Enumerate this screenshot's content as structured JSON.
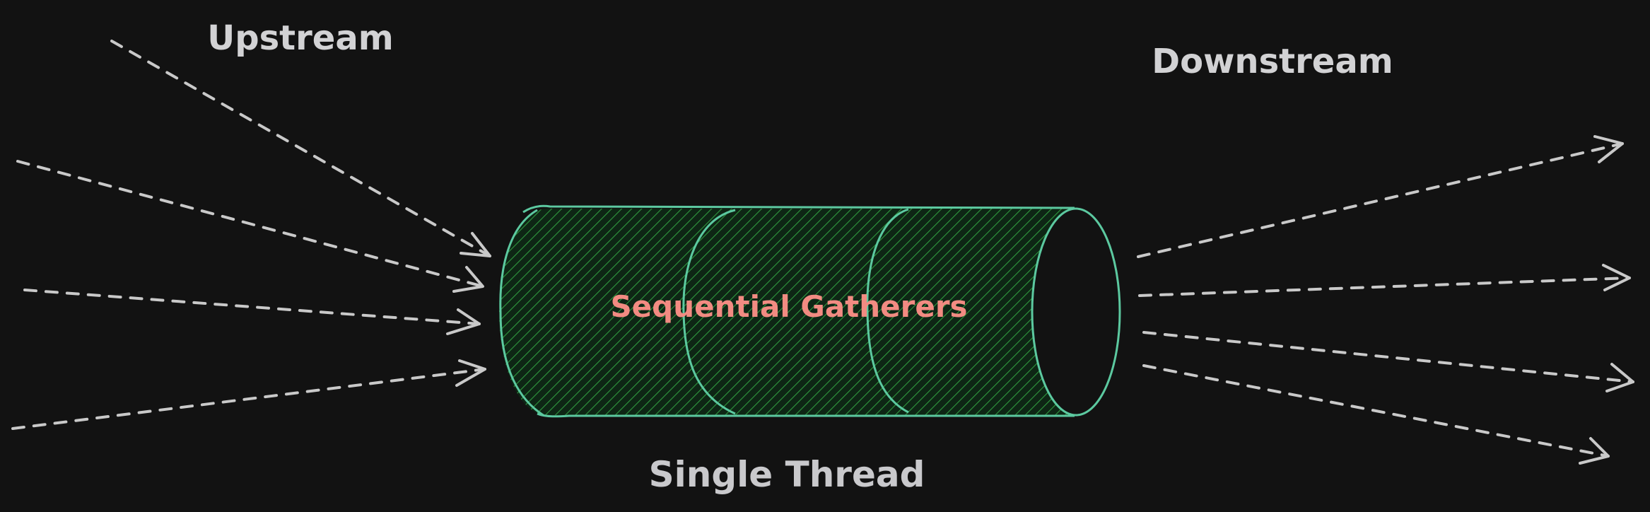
{
  "labels": {
    "upstream": "Upstream",
    "downstream": "Downstream",
    "center": "Sequential Gatherers",
    "bottom": "Single Thread"
  },
  "colors": {
    "background": "#121212",
    "arrow": "#c9c9c9",
    "label": "#d2d2d4",
    "center_label": "#f28b82",
    "pipe_stroke": "#5cc9a0",
    "pipe_hatch": "#2f9a3e",
    "pipe_fill": "#0e2615"
  },
  "diagram": {
    "incoming_arrow_count": 4,
    "outgoing_arrow_count": 4,
    "pipe_segment_count": 3
  }
}
